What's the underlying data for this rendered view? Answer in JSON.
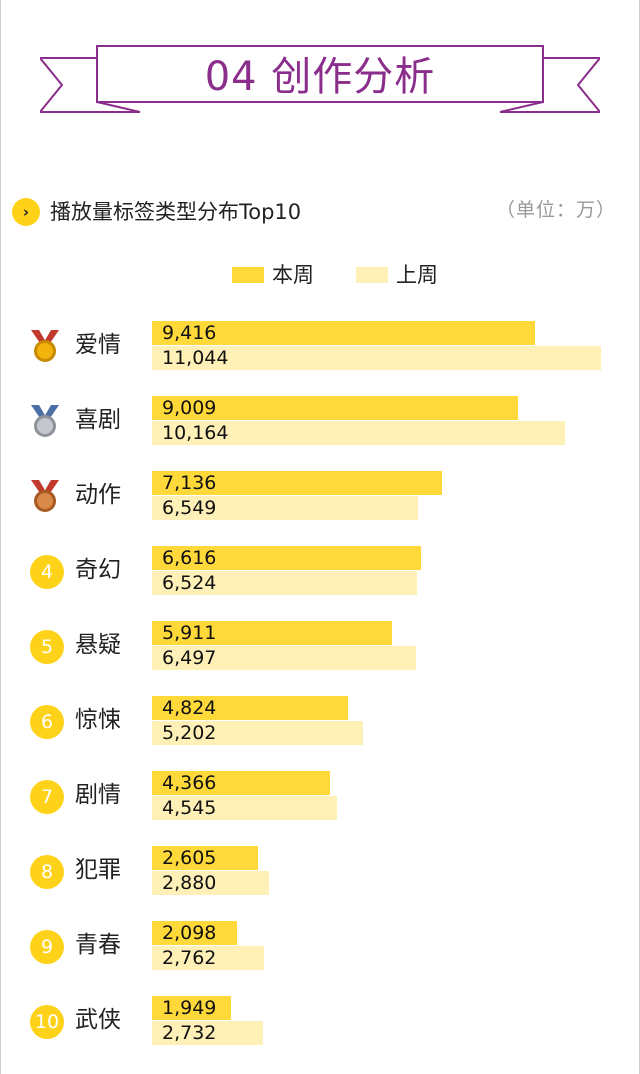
{
  "page": {
    "title": "04 创作分析",
    "section_title": "播放量标签类型分布Top10",
    "unit": "（单位：万）",
    "section_icon": "›"
  },
  "colors": {
    "current": "#ffd83a",
    "previous": "#fff0b8",
    "accent": "#8b2d8b",
    "rank": "#ffd21a"
  },
  "chart_data": {
    "type": "bar",
    "orientation": "horizontal",
    "categories": [
      "爱情",
      "喜剧",
      "动作",
      "奇幻",
      "悬疑",
      "惊悚",
      "剧情",
      "犯罪",
      "青春",
      "武侠"
    ],
    "ranks": [
      "1",
      "2",
      "3",
      "4",
      "5",
      "6",
      "7",
      "8",
      "9",
      "10"
    ],
    "series": [
      {
        "name": "本周",
        "values": [
          9416,
          9009,
          7136,
          6616,
          5911,
          4824,
          4366,
          2605,
          2098,
          1949
        ],
        "labels": [
          "9,416",
          "9,009",
          "7,136",
          "6,616",
          "5,911",
          "4,824",
          "4,366",
          "2,605",
          "2,098",
          "1,949"
        ]
      },
      {
        "name": "上周",
        "values": [
          11044,
          10164,
          6549,
          6524,
          6497,
          5202,
          4545,
          2880,
          2762,
          2732
        ],
        "labels": [
          "11,044",
          "10,164",
          "6,549",
          "6,524",
          "6,497",
          "5,202",
          "4,545",
          "2,880",
          "2,762",
          "2,732"
        ]
      }
    ],
    "xlim": [
      0,
      11044
    ],
    "grid": false,
    "legend_position": "top-center"
  }
}
